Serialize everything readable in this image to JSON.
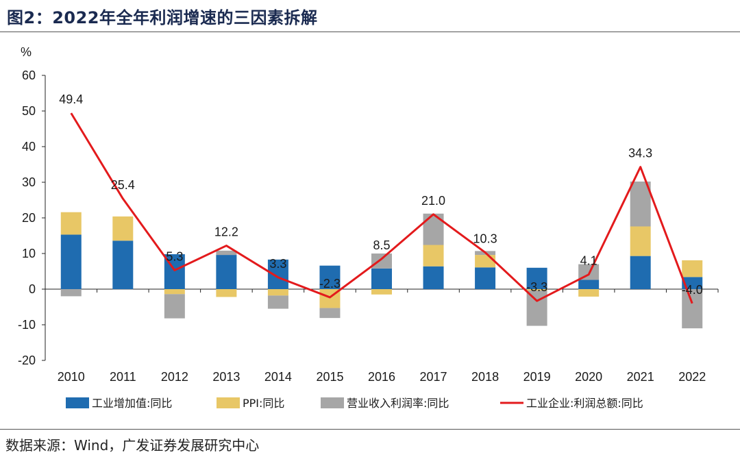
{
  "title": "图2：2022年全年利润增速的三因素拆解",
  "source": "数据来源：Wind，广发证券发展研究中心",
  "chart_data": {
    "type": "bar",
    "stacked": true,
    "ylabel": "%",
    "ylim": [
      -20,
      60
    ],
    "yticks": [
      "60",
      "50",
      "40",
      "30",
      "20",
      "10",
      "0",
      "-10",
      "-20"
    ],
    "categories": [
      "2010",
      "2011",
      "2012",
      "2013",
      "2014",
      "2015",
      "2016",
      "2017",
      "2018",
      "2019",
      "2020",
      "2021",
      "2022"
    ],
    "series": [
      {
        "name": "工业增加值:同比",
        "color": "#1f6cb0",
        "kind": "bar",
        "values": [
          15.3,
          13.6,
          9.8,
          9.6,
          8.3,
          6.6,
          5.8,
          6.4,
          6.1,
          6.0,
          2.6,
          9.3,
          3.4
        ]
      },
      {
        "name": "PPI:同比",
        "color": "#e8c766",
        "kind": "bar",
        "values": [
          6.3,
          6.8,
          -1.4,
          -2.2,
          -1.8,
          -5.3,
          -1.5,
          6.0,
          3.5,
          -0.4,
          -2.1,
          8.3,
          4.7
        ]
      },
      {
        "name": "营业收入利润率:同比",
        "color": "#a6a6a6",
        "kind": "bar",
        "values": [
          -2.0,
          -0.2,
          -6.8,
          1.2,
          -3.7,
          -2.8,
          4.2,
          8.8,
          1.1,
          -9.9,
          4.4,
          12.6,
          -11.0
        ]
      },
      {
        "name": "工业企业:利润总额:同比",
        "color": "#e31a1c",
        "kind": "line",
        "values": [
          49.4,
          25.4,
          5.3,
          12.2,
          3.3,
          -2.3,
          8.5,
          21.0,
          10.3,
          -3.3,
          4.1,
          34.3,
          -4.0
        ],
        "labels": [
          "49.4",
          "25.4",
          "5.3",
          "12.2",
          "3.3",
          "-2.3",
          "8.5",
          "21.0",
          "10.3",
          "-3.3",
          "4.1",
          "34.3",
          "-4.0"
        ]
      }
    ]
  }
}
